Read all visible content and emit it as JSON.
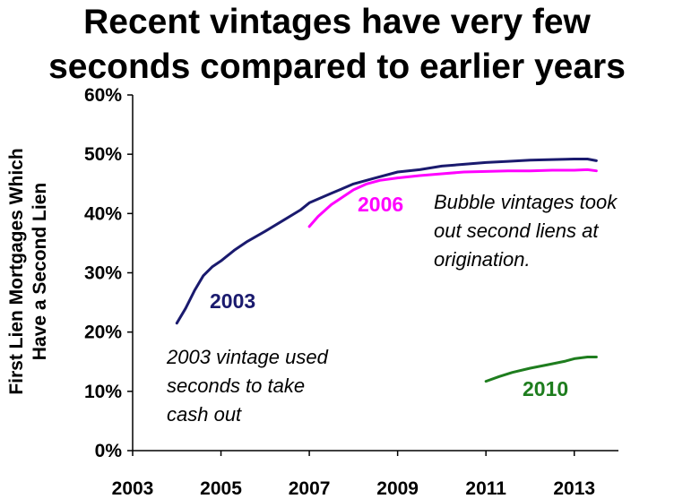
{
  "chart_data": {
    "type": "line",
    "title_lines": [
      "Recent vintages have very few",
      "seconds compared to earlier years"
    ],
    "ylabel_lines": [
      "First Lien Mortgages Which",
      "Have a Second Lien"
    ],
    "xlim": [
      2003,
      2014
    ],
    "ylim": [
      0,
      60
    ],
    "x_ticks": [
      2003,
      2005,
      2007,
      2009,
      2011,
      2013
    ],
    "x_tick_labels": [
      "2003",
      "2005",
      "2007",
      "2009",
      "2011",
      "2013"
    ],
    "y_ticks": [
      0,
      10,
      20,
      30,
      40,
      50,
      60
    ],
    "y_tick_labels": [
      "0%",
      "10%",
      "20%",
      "30%",
      "40%",
      "50%",
      "60%"
    ],
    "grid": false,
    "series": [
      {
        "name": "2003",
        "color": "#1a1a6e",
        "x": [
          2004.0,
          2004.2,
          2004.4,
          2004.6,
          2004.8,
          2005.0,
          2005.3,
          2005.6,
          2006.0,
          2006.4,
          2006.8,
          2007.0,
          2007.5,
          2008.0,
          2008.5,
          2009.0,
          2009.5,
          2010.0,
          2010.5,
          2011.0,
          2011.5,
          2012.0,
          2012.5,
          2013.0,
          2013.3,
          2013.5
        ],
        "y": [
          21.5,
          24.0,
          27.0,
          29.5,
          31.0,
          32.0,
          33.8,
          35.3,
          37.0,
          38.8,
          40.6,
          41.8,
          43.4,
          45.0,
          46.0,
          47.0,
          47.4,
          48.0,
          48.3,
          48.6,
          48.8,
          49.0,
          49.1,
          49.2,
          49.2,
          48.9
        ]
      },
      {
        "name": "2006",
        "color": "#ff00ff",
        "x": [
          2007.0,
          2007.2,
          2007.5,
          2007.8,
          2008.0,
          2008.3,
          2008.6,
          2009.0,
          2009.5,
          2010.0,
          2010.5,
          2011.0,
          2011.5,
          2012.0,
          2012.5,
          2013.0,
          2013.3,
          2013.5
        ],
        "y": [
          37.8,
          39.5,
          41.5,
          43.0,
          44.0,
          45.0,
          45.6,
          46.0,
          46.4,
          46.7,
          47.0,
          47.1,
          47.2,
          47.2,
          47.3,
          47.3,
          47.4,
          47.2
        ]
      },
      {
        "name": "2010",
        "color": "#1e7d1e",
        "x": [
          2011.0,
          2011.3,
          2011.6,
          2012.0,
          2012.4,
          2012.8,
          2013.0,
          2013.3,
          2013.5
        ],
        "y": [
          11.7,
          12.5,
          13.2,
          13.9,
          14.5,
          15.1,
          15.5,
          15.8,
          15.8
        ]
      }
    ],
    "annotations": [
      {
        "lines": [
          "Bubble vintages took",
          "out second liens at",
          "origination."
        ]
      },
      {
        "lines": [
          "2003 vintage used",
          "seconds to take",
          "cash out"
        ]
      }
    ]
  }
}
